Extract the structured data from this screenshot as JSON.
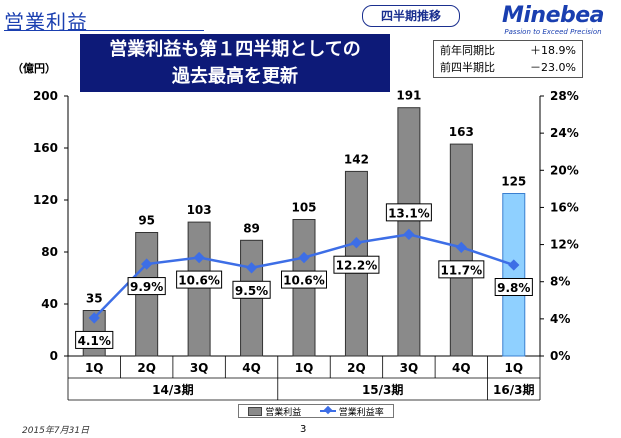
{
  "header": {
    "title": "営業利益",
    "badge": "四半期推移",
    "logo_name": "Minebea",
    "logo_tagline": "Passion to Exceed Precision"
  },
  "headline": {
    "line1": "営業利益も第１四半期としての",
    "line2": "過去最高を更新"
  },
  "comparison": [
    {
      "label": "前年同期比",
      "value": "＋18.9%"
    },
    {
      "label": "前四半期比",
      "value": "－23.0%"
    }
  ],
  "footer": {
    "date": "2015年7月31日",
    "page_number": "3"
  },
  "colors": {
    "bar": "#8a8a8a",
    "bar_highlight": "#8fd0ff",
    "line": "#3d6ee6",
    "headline_bg": "#0d1a78"
  },
  "chart_data": {
    "type": "bar+line",
    "ylabel_left": "（億円）",
    "categories": [
      "1Q",
      "2Q",
      "3Q",
      "4Q",
      "1Q",
      "2Q",
      "3Q",
      "4Q",
      "1Q"
    ],
    "groups": [
      {
        "label": "14/3期",
        "count": 4
      },
      {
        "label": "15/3期",
        "count": 4
      },
      {
        "label": "16/3期",
        "count": 1
      }
    ],
    "series": [
      {
        "name": "営業利益",
        "type": "bar",
        "axis": "left",
        "values": [
          35,
          95,
          103,
          89,
          105,
          142,
          191,
          163,
          125
        ],
        "labels": [
          "35",
          "95",
          "103",
          "89",
          "105",
          "142",
          "191",
          "163",
          "125"
        ]
      },
      {
        "name": "営業利益率",
        "type": "line",
        "axis": "right",
        "values": [
          4.1,
          9.9,
          10.6,
          9.5,
          10.6,
          12.2,
          13.1,
          11.7,
          9.8
        ],
        "labels": [
          "4.1%",
          "9.9%",
          "10.6%",
          "9.5%",
          "10.6%",
          "12.2%",
          "13.1%",
          "11.7%",
          "9.8%"
        ]
      }
    ],
    "y_left": {
      "min": 0,
      "max": 200,
      "ticks": [
        0,
        40,
        80,
        120,
        160,
        200
      ]
    },
    "y_right": {
      "min": 0,
      "max": 28,
      "ticks": [
        0,
        4,
        8,
        12,
        16,
        20,
        24,
        28
      ],
      "tick_labels": [
        "0%",
        "4%",
        "8%",
        "12%",
        "16%",
        "20%",
        "24%",
        "28%"
      ]
    },
    "highlight_index": 8,
    "grid": false,
    "legend_position": "bottom"
  }
}
